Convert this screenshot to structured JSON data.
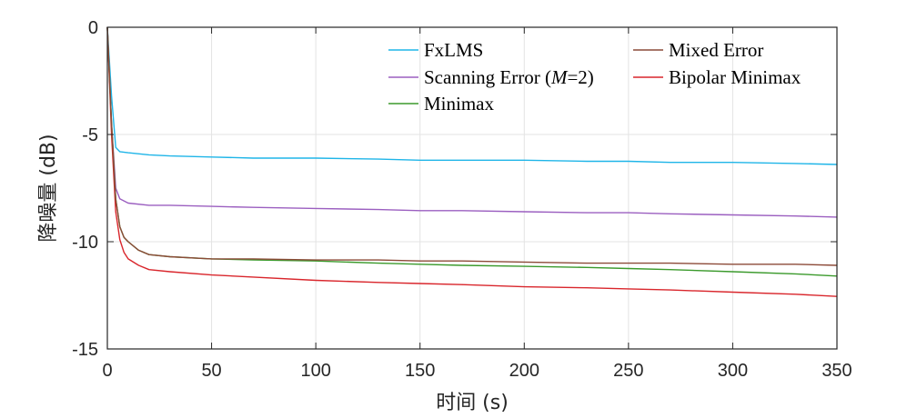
{
  "chart_data": {
    "type": "line",
    "xlabel": "时间 (s)",
    "ylabel": "降噪量 (dB)",
    "xlim": [
      0,
      350
    ],
    "ylim": [
      -15,
      0
    ],
    "x_ticks": [
      0,
      50,
      100,
      150,
      200,
      250,
      300,
      350
    ],
    "y_ticks": [
      -15,
      -10,
      -5,
      0
    ],
    "x_tick_labels": [
      "0",
      "50",
      "100",
      "150",
      "200",
      "250",
      "300",
      "350"
    ],
    "y_tick_labels": [
      "-15",
      "-10",
      "-5",
      "0"
    ],
    "grid": true,
    "legend_position": "top-right",
    "series": [
      {
        "name": "FxLMS",
        "color": "#1fb5e8",
        "x": [
          0,
          2,
          4,
          6,
          10,
          20,
          30,
          50,
          70,
          100,
          130,
          150,
          170,
          200,
          230,
          250,
          270,
          300,
          330,
          350
        ],
        "values": [
          0,
          -3.2,
          -5.6,
          -5.8,
          -5.85,
          -5.95,
          -6.0,
          -6.05,
          -6.1,
          -6.1,
          -6.15,
          -6.2,
          -6.2,
          -6.2,
          -6.25,
          -6.25,
          -6.3,
          -6.3,
          -6.35,
          -6.4
        ]
      },
      {
        "name": "Scanning Error (M=2)",
        "name_parts": [
          "Scanning Error (",
          "M",
          "=2)"
        ],
        "color": "#9b5fc0",
        "x": [
          0,
          2,
          4,
          6,
          10,
          20,
          30,
          50,
          70,
          100,
          130,
          150,
          170,
          200,
          230,
          250,
          270,
          300,
          330,
          350
        ],
        "values": [
          0,
          -4.5,
          -7.5,
          -8.0,
          -8.2,
          -8.3,
          -8.3,
          -8.35,
          -8.4,
          -8.45,
          -8.5,
          -8.55,
          -8.55,
          -8.6,
          -8.65,
          -8.65,
          -8.7,
          -8.75,
          -8.8,
          -8.85
        ]
      },
      {
        "name": "Minimax",
        "color": "#3b9a2c",
        "x": [
          0,
          2,
          4,
          6,
          8,
          10,
          15,
          20,
          30,
          50,
          70,
          100,
          130,
          150,
          170,
          200,
          230,
          250,
          270,
          300,
          330,
          350
        ],
        "values": [
          0,
          -4.5,
          -8.0,
          -9.3,
          -9.8,
          -10.0,
          -10.4,
          -10.6,
          -10.7,
          -10.8,
          -10.85,
          -10.9,
          -11.0,
          -11.05,
          -11.1,
          -11.15,
          -11.2,
          -11.25,
          -11.3,
          -11.4,
          -11.5,
          -11.6
        ]
      },
      {
        "name": "Mixed Error",
        "color": "#8c4a38",
        "x": [
          0,
          2,
          4,
          6,
          8,
          10,
          15,
          20,
          30,
          50,
          70,
          100,
          130,
          150,
          170,
          200,
          230,
          250,
          270,
          300,
          330,
          350
        ],
        "values": [
          0,
          -4.5,
          -8.0,
          -9.3,
          -9.8,
          -10.0,
          -10.4,
          -10.6,
          -10.7,
          -10.8,
          -10.8,
          -10.85,
          -10.85,
          -10.9,
          -10.9,
          -10.95,
          -11.0,
          -11.0,
          -11.0,
          -11.05,
          -11.05,
          -11.1
        ]
      },
      {
        "name": "Bipolar Minimax",
        "color": "#d9262c",
        "x": [
          0,
          2,
          4,
          6,
          8,
          10,
          15,
          20,
          30,
          50,
          70,
          100,
          130,
          150,
          170,
          200,
          230,
          250,
          270,
          300,
          330,
          350
        ],
        "values": [
          0,
          -5.0,
          -8.6,
          -9.9,
          -10.5,
          -10.8,
          -11.1,
          -11.3,
          -11.4,
          -11.55,
          -11.65,
          -11.8,
          -11.9,
          -11.95,
          -12.0,
          -12.1,
          -12.15,
          -12.2,
          -12.25,
          -12.35,
          -12.45,
          -12.55
        ]
      }
    ],
    "legend": {
      "columns": [
        [
          "FxLMS",
          "Scanning Error (M=2)",
          "Minimax"
        ],
        [
          "Mixed Error",
          "Bipolar Minimax"
        ]
      ]
    }
  }
}
